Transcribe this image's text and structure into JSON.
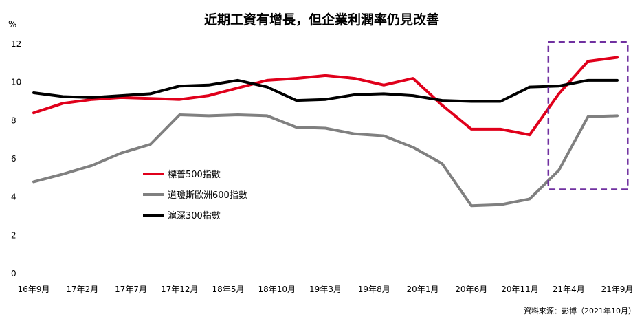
{
  "chart_data": {
    "type": "line",
    "title": "近期工資有增長，但企業利潤率仍見改善",
    "ylabel": "%",
    "ylim": [
      0,
      12
    ],
    "yticks": [
      0,
      2,
      4,
      6,
      8,
      10,
      12
    ],
    "grid": false,
    "legend_position": "center-left",
    "x_tick_labels": [
      "16年9月",
      "17年2月",
      "17年7月",
      "17年12月",
      "18年5月",
      "18年10月",
      "19年3月",
      "19年8月",
      "20年1月",
      "20年6月",
      "20年11月",
      "21年4月",
      "21年9月"
    ],
    "x": [
      "16年9月",
      "16年12月",
      "17年3月",
      "17年6月",
      "17年9月",
      "17年12月",
      "18年3月",
      "18年6月",
      "18年9月",
      "18年12月",
      "19年3月",
      "19年6月",
      "19年9月",
      "19年12月",
      "20年3月",
      "20年6月",
      "20年9月",
      "20年12月",
      "21年3月",
      "21年6月",
      "21年9月"
    ],
    "series": [
      {
        "name": "標普500指數",
        "color": "#e0001b",
        "values": [
          8.4,
          8.9,
          9.1,
          9.2,
          9.15,
          9.1,
          9.3,
          9.7,
          10.1,
          10.2,
          10.35,
          10.2,
          9.85,
          10.2,
          8.8,
          7.55,
          7.55,
          7.25,
          9.4,
          11.1,
          11.3
        ]
      },
      {
        "name": "道瓊斯歐洲600指數",
        "color": "#808080",
        "values": [
          4.8,
          5.2,
          5.65,
          6.3,
          6.75,
          8.3,
          8.25,
          8.3,
          8.25,
          7.65,
          7.6,
          7.3,
          7.2,
          6.6,
          5.75,
          3.55,
          3.6,
          3.9,
          5.4,
          8.2,
          8.25
        ]
      },
      {
        "name": "滬深300指數",
        "color": "#000000",
        "values": [
          9.45,
          9.25,
          9.2,
          9.3,
          9.4,
          9.8,
          9.85,
          10.1,
          9.75,
          9.05,
          9.1,
          9.35,
          9.4,
          9.3,
          9.05,
          9.0,
          9.0,
          9.75,
          9.8,
          10.1,
          10.1
        ]
      }
    ],
    "highlight_box": {
      "style": "dashed",
      "color": "#7030a0",
      "x_start": "21年3月",
      "x_end": "21年9月",
      "y_range": [
        4.4,
        12.1
      ]
    },
    "source": "資料來源：彭博（2021年10月）"
  }
}
